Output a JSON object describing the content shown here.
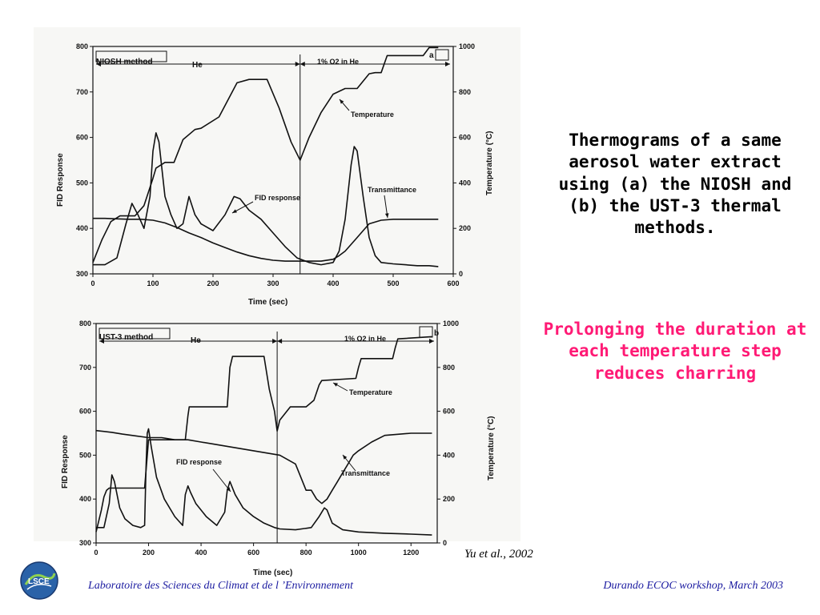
{
  "slide": {
    "title": "Thermograms of a same aerosol water extract using (a) the NIOSH and (b) the UST-3 thermal methods.",
    "subtitle": "Prolonging the duration at each temperature step reduces charring",
    "citation": "Yu et al., 2002",
    "footer_left": "Laboratoire des Sciences du Climat et de l ’Environnement",
    "footer_right": "Durando ECOC workshop, March 2003",
    "logo_text": "LSCE",
    "colors": {
      "title": "#000000",
      "subtitle": "#ff1a75",
      "footer": "#1a1aa0"
    }
  },
  "chart_data": [
    {
      "type": "line",
      "method_label": "NIOSH method",
      "panel_label": "a",
      "phase_labels": [
        "He",
        "1% O2 in He"
      ],
      "phase_switch_x": 345,
      "xlabel": "Time (sec)",
      "ylabel_left": "FID Response",
      "ylabel_right": "Temperature (°C)",
      "xlim": [
        0,
        600
      ],
      "ylim_left": [
        300,
        800
      ],
      "ylim_right": [
        0,
        1000
      ],
      "xticks": [
        0,
        100,
        200,
        300,
        400,
        500,
        600
      ],
      "yticks_left": [
        300,
        400,
        500,
        600,
        700,
        800
      ],
      "yticks_right": [
        0,
        200,
        400,
        600,
        800,
        1000
      ],
      "annotations": [
        "Temperature",
        "FID response",
        "Transmittance"
      ],
      "series": [
        {
          "name": "Temperature",
          "axis": "right",
          "x": [
            0,
            15,
            30,
            45,
            60,
            70,
            85,
            100,
            105,
            120,
            135,
            150,
            170,
            180,
            210,
            240,
            260,
            280,
            290,
            310,
            330,
            345,
            360,
            380,
            400,
            420,
            440,
            460,
            470,
            480,
            490,
            500,
            510,
            530,
            550,
            560,
            575
          ],
          "y": [
            50,
            150,
            230,
            255,
            255,
            255,
            300,
            420,
            465,
            490,
            490,
            590,
            635,
            640,
            690,
            840,
            855,
            855,
            855,
            730,
            580,
            500,
            600,
            710,
            790,
            815,
            815,
            880,
            885,
            885,
            960,
            960,
            960,
            960,
            960,
            995,
            995
          ]
        },
        {
          "name": "FID response",
          "axis": "left",
          "x": [
            0,
            20,
            40,
            55,
            65,
            75,
            85,
            95,
            100,
            105,
            110,
            120,
            130,
            140,
            150,
            160,
            170,
            180,
            200,
            220,
            235,
            245,
            260,
            280,
            300,
            320,
            340,
            360,
            380,
            400,
            410,
            420,
            430,
            435,
            440,
            450,
            460,
            470,
            480,
            500,
            520,
            540,
            560,
            575
          ],
          "y": [
            320,
            320,
            335,
            410,
            455,
            430,
            400,
            470,
            570,
            610,
            590,
            470,
            430,
            400,
            410,
            470,
            430,
            410,
            395,
            430,
            470,
            465,
            440,
            420,
            390,
            360,
            335,
            325,
            320,
            325,
            350,
            420,
            540,
            580,
            570,
            470,
            380,
            340,
            325,
            322,
            320,
            318,
            318,
            316
          ]
        },
        {
          "name": "Transmittance",
          "axis": "left",
          "x": [
            0,
            20,
            40,
            60,
            80,
            100,
            120,
            140,
            160,
            180,
            200,
            220,
            240,
            260,
            280,
            300,
            320,
            340,
            360,
            380,
            400,
            410,
            420,
            430,
            440,
            450,
            460,
            480,
            500,
            520,
            540,
            575
          ],
          "y": [
            422,
            422,
            421,
            420,
            420,
            418,
            412,
            402,
            390,
            380,
            368,
            358,
            348,
            340,
            334,
            330,
            328,
            328,
            328,
            328,
            332,
            340,
            350,
            365,
            380,
            395,
            410,
            418,
            420,
            420,
            420,
            420
          ]
        }
      ]
    },
    {
      "type": "line",
      "method_label": "UST-3 method",
      "panel_label": "b",
      "phase_labels": [
        "He",
        "1% O2 in He"
      ],
      "phase_switch_x": 690,
      "xlabel": "Time (sec)",
      "ylabel_left": "FID Response",
      "ylabel_right": "Temperature (°C)",
      "xlim": [
        0,
        1300
      ],
      "ylim_left": [
        300,
        800
      ],
      "ylim_right": [
        0,
        1000
      ],
      "xticks": [
        0,
        200,
        400,
        600,
        800,
        1000,
        1200
      ],
      "yticks_left": [
        300,
        400,
        500,
        600,
        700,
        800
      ],
      "yticks_right": [
        0,
        200,
        400,
        600,
        800,
        1000
      ],
      "annotations": [
        "Temperature",
        "FID response",
        "Transmittance"
      ],
      "series": [
        {
          "name": "Temperature",
          "axis": "right",
          "x": [
            0,
            20,
            30,
            40,
            50,
            185,
            200,
            340,
            350,
            355,
            500,
            510,
            520,
            640,
            660,
            680,
            690,
            700,
            740,
            800,
            830,
            850,
            860,
            990,
            1000,
            1010,
            1130,
            1140,
            1150,
            1280
          ],
          "y": [
            50,
            150,
            210,
            240,
            250,
            250,
            470,
            470,
            580,
            620,
            620,
            800,
            850,
            850,
            700,
            600,
            510,
            560,
            620,
            620,
            650,
            720,
            740,
            750,
            800,
            840,
            840,
            890,
            930,
            940
          ]
        },
        {
          "name": "FID response",
          "axis": "left",
          "x": [
            0,
            30,
            50,
            60,
            70,
            90,
            110,
            140,
            170,
            185,
            190,
            195,
            200,
            210,
            230,
            260,
            300,
            330,
            340,
            350,
            360,
            380,
            420,
            460,
            490,
            500,
            510,
            530,
            560,
            600,
            640,
            680,
            700,
            760,
            820,
            850,
            870,
            880,
            900,
            940,
            1000,
            1100,
            1200,
            1280
          ],
          "y": [
            335,
            335,
            390,
            455,
            440,
            380,
            355,
            340,
            335,
            340,
            470,
            550,
            560,
            520,
            450,
            400,
            360,
            340,
            410,
            430,
            415,
            390,
            360,
            340,
            370,
            420,
            440,
            410,
            380,
            360,
            345,
            335,
            332,
            330,
            335,
            360,
            380,
            375,
            345,
            330,
            325,
            322,
            320,
            318
          ]
        },
        {
          "name": "Transmittance",
          "axis": "left",
          "x": [
            0,
            60,
            100,
            150,
            200,
            250,
            300,
            350,
            400,
            450,
            500,
            550,
            600,
            650,
            700,
            760,
            800,
            820,
            840,
            860,
            880,
            900,
            920,
            940,
            960,
            980,
            1000,
            1050,
            1100,
            1200,
            1280
          ],
          "y": [
            556,
            552,
            548,
            544,
            540,
            540,
            535,
            535,
            530,
            525,
            520,
            515,
            510,
            505,
            500,
            480,
            420,
            420,
            400,
            390,
            400,
            420,
            440,
            460,
            480,
            500,
            510,
            530,
            545,
            550,
            550
          ]
        }
      ]
    }
  ]
}
